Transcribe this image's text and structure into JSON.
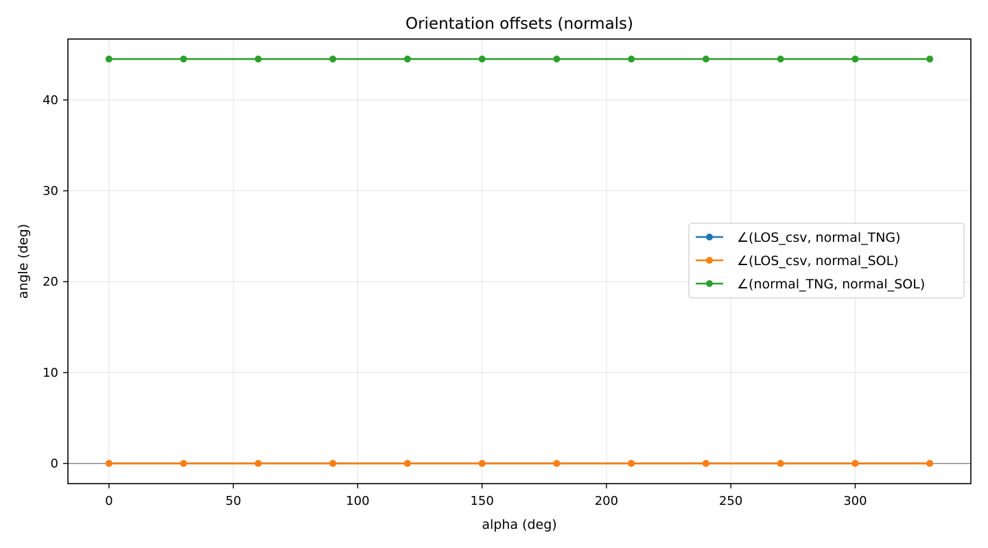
{
  "chart_data": {
    "type": "line",
    "title": "Orientation offsets (normals)",
    "xlabel": "alpha (deg)",
    "ylabel": "angle (deg)",
    "xlim": [
      -16.5,
      346.5
    ],
    "ylim": [
      -2.22,
      46.7
    ],
    "xticks": [
      0,
      50,
      100,
      150,
      200,
      250,
      300
    ],
    "yticks": [
      0,
      10,
      20,
      30,
      40
    ],
    "grid": true,
    "reference_line_y": 0,
    "legend_position": "center-right",
    "x": [
      0,
      30,
      60,
      90,
      120,
      150,
      180,
      210,
      240,
      270,
      300,
      330
    ],
    "series": [
      {
        "name": "∠(LOS_csv, normal_TNG)",
        "color": "#1f77b4",
        "values": [
          0,
          0,
          0,
          0,
          0,
          0,
          0,
          0,
          0,
          0,
          0,
          0
        ]
      },
      {
        "name": "∠(LOS_csv, normal_SOL)",
        "color": "#ff7f0e",
        "values": [
          0,
          0,
          0,
          0,
          0,
          0,
          0,
          0,
          0,
          0,
          0,
          0
        ]
      },
      {
        "name": "∠(normal_TNG, normal_SOL)",
        "color": "#2ca02c",
        "values": [
          44.5,
          44.5,
          44.5,
          44.5,
          44.5,
          44.5,
          44.5,
          44.5,
          44.5,
          44.5,
          44.5,
          44.5
        ]
      }
    ]
  }
}
